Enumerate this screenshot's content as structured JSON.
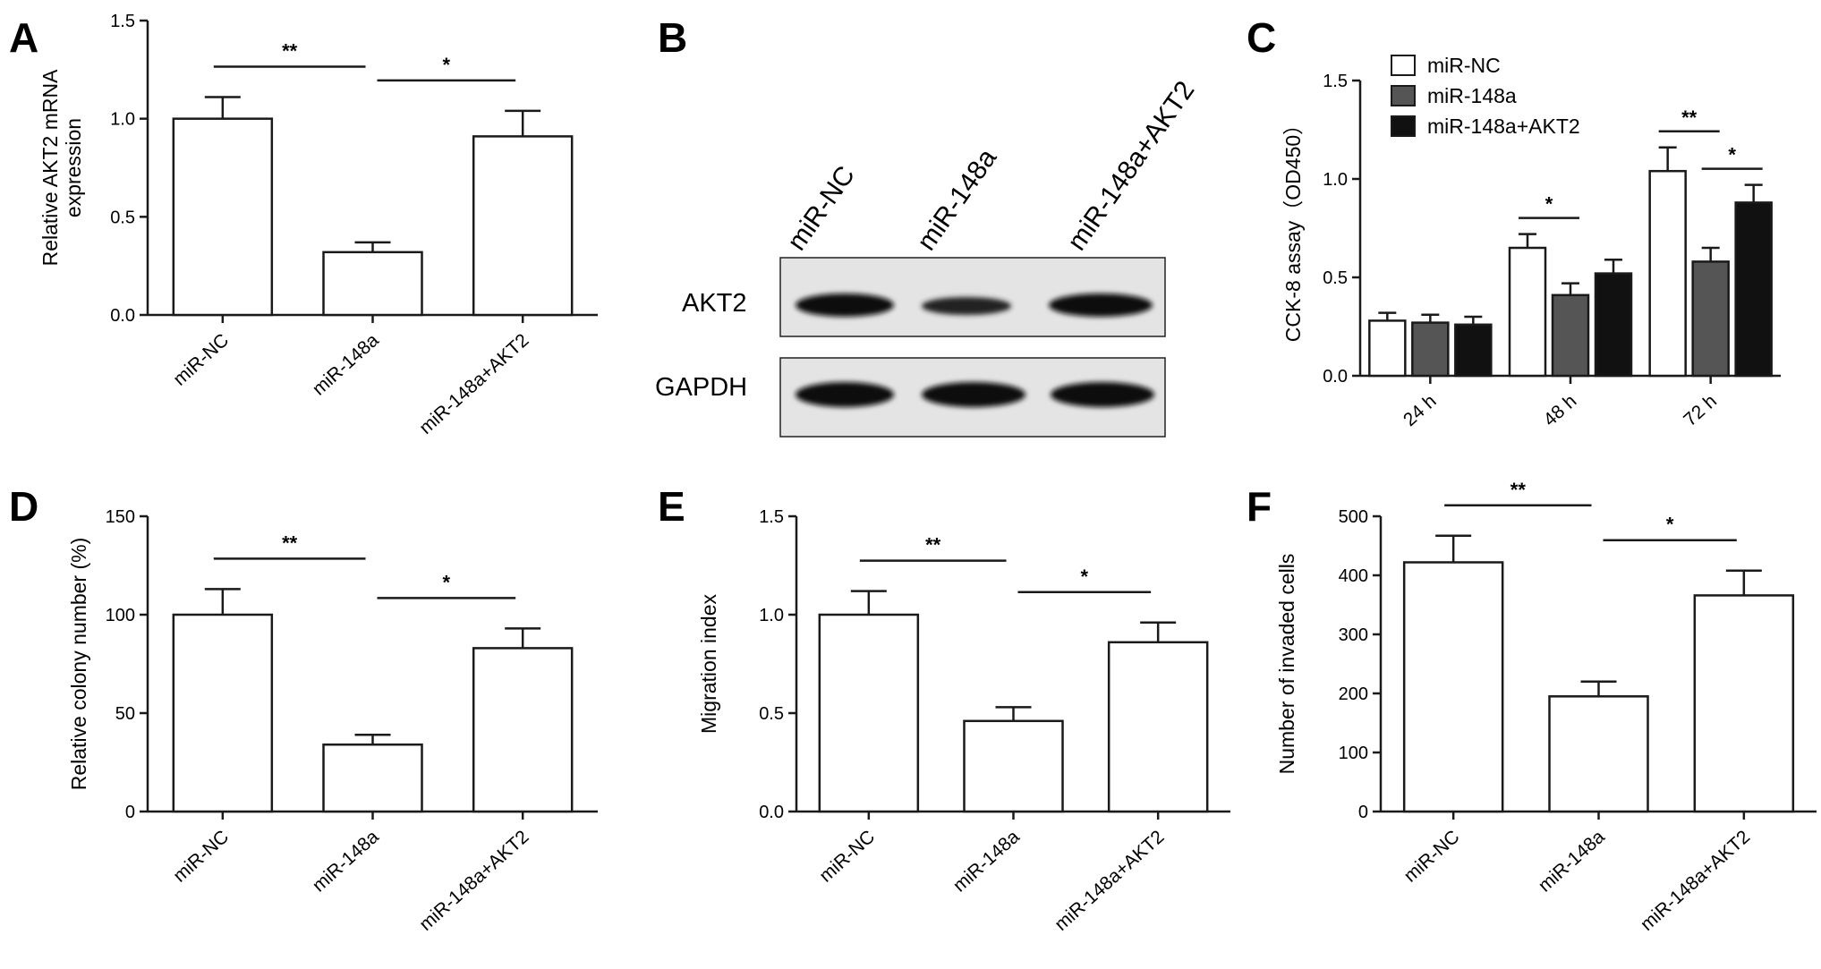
{
  "figure": {
    "panels": [
      "A",
      "B",
      "C",
      "D",
      "E",
      "F"
    ]
  },
  "blot": {
    "lanes": [
      "miR-NC",
      "miR-148a",
      "miR-148a+AKT2"
    ],
    "rows": [
      "AKT2",
      "GAPDH"
    ]
  },
  "colors": {
    "miR-NC": "#ffffff",
    "miR-148a": "#555555",
    "miR-148a+AKT2": "#111111",
    "ink": "#1a1a1a"
  },
  "chart_data": [
    {
      "panel": "A",
      "type": "bar",
      "categories": [
        "miR-NC",
        "miR-148a",
        "miR-148a+AKT2"
      ],
      "values": [
        1.0,
        0.32,
        0.91
      ],
      "errors": [
        0.11,
        0.05,
        0.13
      ],
      "ylabel_lines": [
        "Relative AKT2 mRNA",
        "expression"
      ],
      "ylim": [
        0,
        1.5
      ],
      "yticks": [
        "0.0",
        "0.5",
        "1.0",
        "1.5"
      ],
      "significance": [
        {
          "from": 0,
          "to": 1,
          "label": "**"
        },
        {
          "from": 1,
          "to": 2,
          "label": "*"
        }
      ]
    },
    {
      "panel": "C",
      "type": "bar",
      "categories": [
        "24 h",
        "48 h",
        "72 h"
      ],
      "series": [
        {
          "name": "miR-NC",
          "values": [
            0.28,
            0.65,
            1.04
          ],
          "errors": [
            0.04,
            0.07,
            0.12
          ]
        },
        {
          "name": "miR-148a",
          "values": [
            0.27,
            0.41,
            0.58
          ],
          "errors": [
            0.04,
            0.06,
            0.07
          ]
        },
        {
          "name": "miR-148a+AKT2",
          "values": [
            0.26,
            0.52,
            0.88
          ],
          "errors": [
            0.04,
            0.07,
            0.09
          ]
        }
      ],
      "ylabel_lines": [
        "CCK-8 assay（OD450）"
      ],
      "ylim": [
        0,
        1.5
      ],
      "yticks": [
        "0.0",
        "0.5",
        "1.0",
        "1.5"
      ],
      "legend": "top-left",
      "significance": [
        {
          "group": 1,
          "from": 0,
          "to": 1,
          "label": "*"
        },
        {
          "group": 2,
          "from": 0,
          "to": 1,
          "label": "**"
        },
        {
          "group": 2,
          "from": 1,
          "to": 2,
          "label": "*"
        }
      ]
    },
    {
      "panel": "D",
      "type": "bar",
      "categories": [
        "miR-NC",
        "miR-148a",
        "miR-148a+AKT2"
      ],
      "values": [
        100,
        34,
        83
      ],
      "errors": [
        13,
        5,
        10
      ],
      "ylabel_lines": [
        "Relative colony number (%)"
      ],
      "ylim": [
        0,
        150
      ],
      "yticks": [
        "0",
        "50",
        "100",
        "150"
      ],
      "significance": [
        {
          "from": 0,
          "to": 1,
          "label": "**"
        },
        {
          "from": 1,
          "to": 2,
          "label": "*"
        }
      ]
    },
    {
      "panel": "E",
      "type": "bar",
      "categories": [
        "miR-NC",
        "miR-148a",
        "miR-148a+AKT2"
      ],
      "values": [
        1.0,
        0.46,
        0.86
      ],
      "errors": [
        0.12,
        0.07,
        0.1
      ],
      "ylabel_lines": [
        "Migration index"
      ],
      "ylim": [
        0,
        1.5
      ],
      "yticks": [
        "0.0",
        "0.5",
        "1.0",
        "1.5"
      ],
      "significance": [
        {
          "from": 0,
          "to": 1,
          "label": "**"
        },
        {
          "from": 1,
          "to": 2,
          "label": "*"
        }
      ]
    },
    {
      "panel": "F",
      "type": "bar",
      "categories": [
        "miR-NC",
        "miR-148a",
        "miR-148a+AKT2"
      ],
      "values": [
        422,
        195,
        366
      ],
      "errors": [
        45,
        25,
        42
      ],
      "ylabel_lines": [
        "Number of invaded cells"
      ],
      "ylim": [
        0,
        500
      ],
      "yticks": [
        "0",
        "100",
        "200",
        "300",
        "400",
        "500"
      ],
      "significance": [
        {
          "from": 0,
          "to": 1,
          "label": "**"
        },
        {
          "from": 1,
          "to": 2,
          "label": "*"
        }
      ]
    }
  ]
}
